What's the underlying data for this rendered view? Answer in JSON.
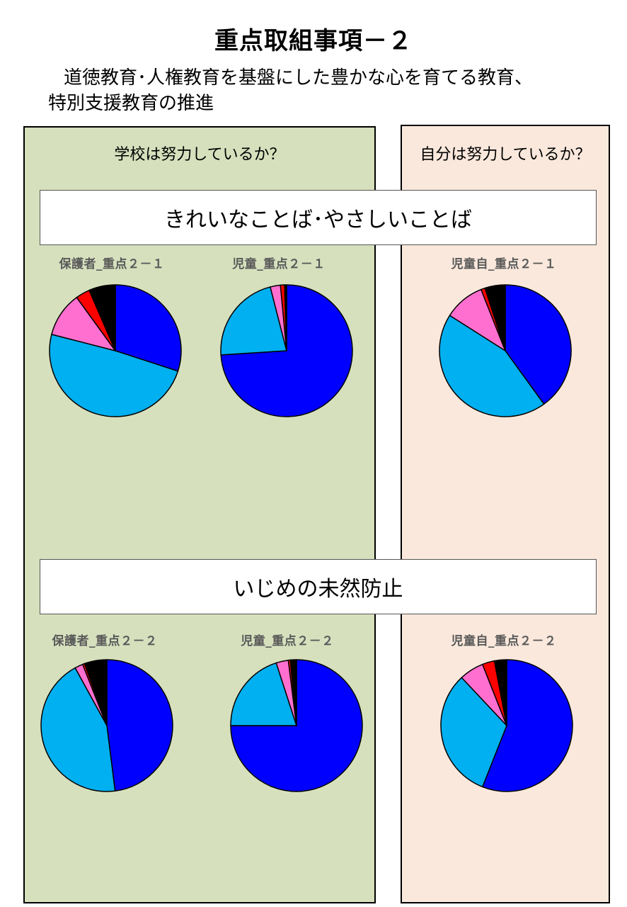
{
  "title": "重点取組事項－２",
  "subtitle": {
    "line1": "道徳教育･人権教育を基盤にした豊かな心を育てる教育、",
    "line2": "特別支援教育の推進"
  },
  "panels": {
    "school": {
      "heading": "学校は努力しているか？"
    },
    "self": {
      "heading": "自分は努力しているか？"
    }
  },
  "sections": [
    {
      "title": "きれいなことば･やさしいことば"
    },
    {
      "title": "いじめの未然防止"
    }
  ],
  "colors": {
    "panel_school_bg": "#d6e0bd",
    "panel_self_bg": "#fae8dc",
    "series": [
      "#0000ff",
      "#00b0f0",
      "#ff6fcf",
      "#ff0000",
      "#000000"
    ]
  },
  "chart_data": [
    {
      "type": "pie",
      "title": "保護者_重点２－１",
      "values": [
        30,
        49,
        11,
        3.5,
        6.5
      ]
    },
    {
      "type": "pie",
      "title": "児童_重点２－１",
      "values": [
        74,
        22,
        2.5,
        1,
        0.5
      ]
    },
    {
      "type": "pie",
      "title": "児童自_重点２－１",
      "values": [
        40,
        44,
        10,
        1,
        5
      ]
    },
    {
      "type": "pie",
      "title": "保護者_重点２－２",
      "values": [
        48,
        44,
        2,
        0.5,
        5.5
      ]
    },
    {
      "type": "pie",
      "title": "児童_重点２－２",
      "values": [
        75,
        20,
        3,
        0.5,
        1.5
      ]
    },
    {
      "type": "pie",
      "title": "児童自_重点２－２",
      "values": [
        56,
        32,
        6,
        3,
        3
      ]
    }
  ]
}
